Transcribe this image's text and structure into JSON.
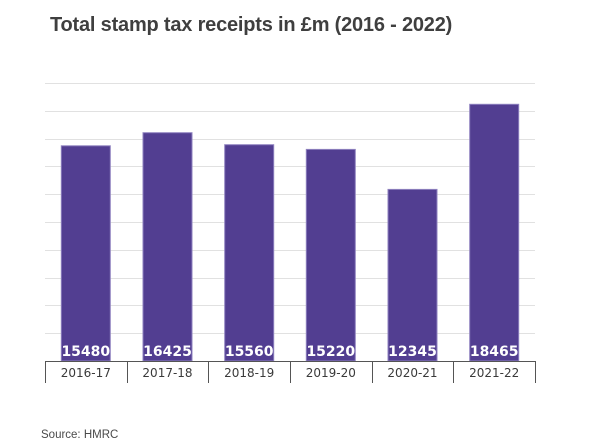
{
  "chart_data": {
    "type": "bar",
    "title": "Total stamp tax receipts in £m (2016 - 2022)",
    "xlabel": "",
    "ylabel": "",
    "categories": [
      "2016-17",
      "2017-18",
      "2018-19",
      "2019-20",
      "2020-21",
      "2021-22"
    ],
    "values": [
      15480,
      16425,
      15560,
      15220,
      12345,
      18465
    ],
    "data_labels": [
      "15480",
      "16425",
      "15560",
      "15220",
      "12345",
      "18465"
    ],
    "ylim": [
      0,
      20000
    ],
    "y_gridline_step": 2000,
    "grid": true,
    "y_tick_labels_visible": false,
    "bar_color": "#523e91",
    "source": "Source: HMRC"
  }
}
